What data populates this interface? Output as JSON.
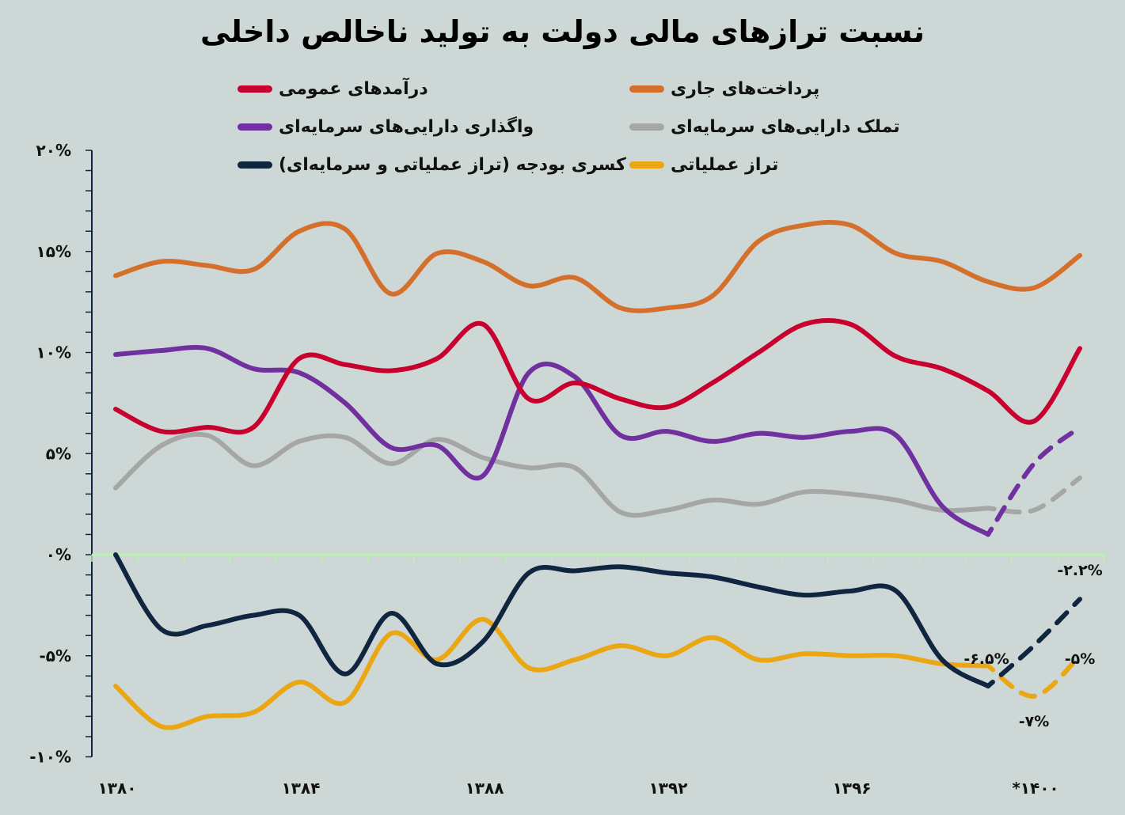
{
  "title": "نسبت ترازهای مالی دولت به تولید ناخالص داخلی",
  "chart_data": {
    "type": "line",
    "title": "نسبت ترازهای مالی دولت به تولید ناخالص داخلی",
    "x": [
      1380,
      1381,
      1382,
      1383,
      1384,
      1385,
      1386,
      1387,
      1388,
      1389,
      1390,
      1391,
      1392,
      1393,
      1394,
      1395,
      1396,
      1397,
      1398,
      1399,
      1400,
      1401
    ],
    "x_tick_labels": [
      {
        "year": 1380,
        "label": "۱۳۸۰"
      },
      {
        "year": 1384,
        "label": "۱۳۸۴"
      },
      {
        "year": 1388,
        "label": "۱۳۸۸"
      },
      {
        "year": 1392,
        "label": "۱۳۹۲"
      },
      {
        "year": 1396,
        "label": "۱۳۹۶"
      },
      {
        "year": 1400,
        "label": "*۱۴۰۰"
      }
    ],
    "y_tick_labels": [
      {
        "value": 20,
        "label": "۲۰%"
      },
      {
        "value": 15,
        "label": "۱۵%"
      },
      {
        "value": 10,
        "label": "۱۰%"
      },
      {
        "value": 5,
        "label": "۵%"
      },
      {
        "value": 0,
        "label": "۰%"
      },
      {
        "value": -5,
        "label": "-۵%"
      },
      {
        "value": -10,
        "label": "-۱۰%"
      }
    ],
    "ylim": [
      -10,
      20
    ],
    "yunit": "%",
    "grid": false,
    "legend_placement": "top",
    "series": [
      {
        "name": "پرداخت‌های جاری",
        "color": "#d4702c",
        "dashed_after": null,
        "values": [
          13.8,
          14.5,
          14.3,
          14.1,
          16.0,
          16.1,
          12.9,
          14.9,
          14.5,
          13.3,
          13.7,
          12.2,
          12.2,
          12.8,
          15.5,
          16.3,
          16.3,
          14.9,
          14.5,
          13.5,
          13.2,
          14.8
        ]
      },
      {
        "name": "درآمدهای عمومی",
        "color": "#c8002f",
        "dashed_after": null,
        "values": [
          7.2,
          6.1,
          6.3,
          6.3,
          9.7,
          9.4,
          9.1,
          9.7,
          11.4,
          7.7,
          8.5,
          7.7,
          7.3,
          8.5,
          10.0,
          11.4,
          11.4,
          9.8,
          9.2,
          8.1,
          6.6,
          10.2
        ]
      },
      {
        "name": "تملک دارایی‌های سرمایه‌ای",
        "color": "#a6a6a6",
        "dashed_after": 1399,
        "values": [
          3.3,
          5.4,
          5.9,
          4.4,
          5.6,
          5.8,
          4.5,
          5.7,
          4.8,
          4.3,
          4.3,
          2.1,
          2.2,
          2.7,
          2.5,
          3.1,
          3.0,
          2.7,
          2.2,
          2.3,
          2.2,
          3.8
        ]
      },
      {
        "name": "واگذاری دارایی‌های سرمایه‌ای",
        "color": "#7030a0",
        "dashed_after": 1399,
        "values": [
          9.9,
          10.1,
          10.2,
          9.2,
          9.0,
          7.5,
          5.3,
          5.4,
          3.9,
          9.0,
          8.8,
          5.9,
          6.1,
          5.6,
          6.0,
          5.8,
          6.1,
          5.9,
          2.4,
          1.0,
          4.5,
          6.3
        ]
      },
      {
        "name": "تراز عملیاتی",
        "color": "#eba614",
        "dashed_after": 1399,
        "values": [
          -6.5,
          -8.5,
          -8.0,
          -7.8,
          -6.3,
          -7.3,
          -3.9,
          -5.2,
          -3.2,
          -5.6,
          -5.2,
          -4.5,
          -5.0,
          -4.1,
          -5.2,
          -4.9,
          -5.0,
          -5.0,
          -5.4,
          -5.5,
          -7.0,
          -5.0
        ]
      },
      {
        "name": "کسری بودجه (تراز عملیاتی و سرمایه‌ای)",
        "color": "#10253f",
        "dashed_after": 1399,
        "values": [
          0.0,
          -3.7,
          -3.5,
          -3.0,
          -3.0,
          -5.9,
          -2.9,
          -5.4,
          -4.3,
          -0.9,
          -0.8,
          -0.6,
          -0.9,
          -1.1,
          -1.6,
          -2.0,
          -1.8,
          -1.8,
          -5.2,
          -6.5,
          -4.5,
          -2.2
        ]
      }
    ],
    "annotations": [
      {
        "series": 5,
        "year": 1399,
        "label": "-۶.۵%"
      },
      {
        "series": 5,
        "year": 1401,
        "label": "-۲.۲%"
      },
      {
        "series": 4,
        "year": 1401,
        "label": "-۵%"
      },
      {
        "series": 4,
        "year": 1400,
        "label": "-۷%"
      }
    ]
  },
  "legend": [
    {
      "label": "پرداخت‌های جاری",
      "color": "#d4702c"
    },
    {
      "label": "درآمدهای عمومی",
      "color": "#c8002f"
    },
    {
      "label": "تملک دارایی‌های سرمایه‌ای",
      "color": "#a6a6a6"
    },
    {
      "label": "واگذاری دارایی‌های سرمایه‌ای",
      "color": "#7030a0"
    },
    {
      "label": "تراز عملیاتی",
      "color": "#eba614"
    },
    {
      "label": "کسری بودجه (تراز عملیاتی و سرمایه‌ای)",
      "color": "#10253f"
    }
  ],
  "colors": {
    "background": "#cdd8d6",
    "axis": "#10253f",
    "zero_line": "#b8f5b0"
  }
}
